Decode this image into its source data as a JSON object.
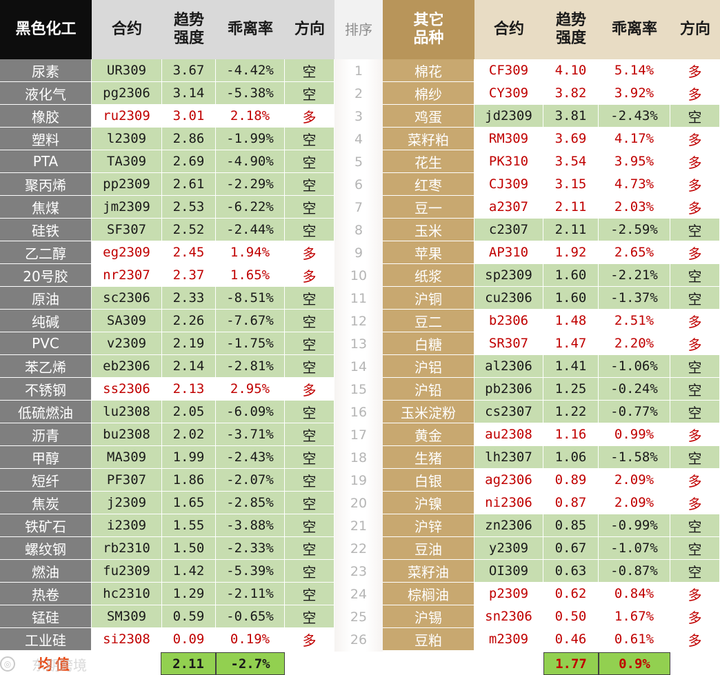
{
  "colors": {
    "header_black": "#0d0d0d",
    "header_gray": "#d9d9d9",
    "header_rank": "#f2f2f2",
    "header_gold": "#b8955a",
    "header_tan": "#e8dcc4",
    "name_left_bg": "#7f7f7f",
    "name_right_bg": "#c8a870",
    "short_bg": "#c7ddb0",
    "long_bg": "#ffffff",
    "short_text": "#1a1a1a",
    "long_text": "#c00000",
    "avg_bg": "#92d050",
    "avg_label": "#e8430b"
  },
  "left": {
    "title": "黑色化工",
    "col_contract": "合约",
    "col_strength": "趋势\n强度",
    "col_deviation": "乖离率",
    "col_direction": "方向",
    "rows": [
      {
        "name": "尿素",
        "contract": "UR309",
        "strength": "3.67",
        "deviation": "-4.42%",
        "direction": "空"
      },
      {
        "name": "液化气",
        "contract": "pg2306",
        "strength": "3.14",
        "deviation": "-5.38%",
        "direction": "空"
      },
      {
        "name": "橡胶",
        "contract": "ru2309",
        "strength": "3.01",
        "deviation": "2.18%",
        "direction": "多"
      },
      {
        "name": "塑料",
        "contract": "l2309",
        "strength": "2.86",
        "deviation": "-1.99%",
        "direction": "空"
      },
      {
        "name": "PTA",
        "contract": "TA309",
        "strength": "2.69",
        "deviation": "-4.90%",
        "direction": "空"
      },
      {
        "name": "聚丙烯",
        "contract": "pp2309",
        "strength": "2.61",
        "deviation": "-2.29%",
        "direction": "空"
      },
      {
        "name": "焦煤",
        "contract": "jm2309",
        "strength": "2.53",
        "deviation": "-6.22%",
        "direction": "空"
      },
      {
        "name": "硅铁",
        "contract": "SF307",
        "strength": "2.52",
        "deviation": "-2.44%",
        "direction": "空"
      },
      {
        "name": "乙二醇",
        "contract": "eg2309",
        "strength": "2.45",
        "deviation": "1.94%",
        "direction": "多"
      },
      {
        "name": "20号胶",
        "contract": "nr2307",
        "strength": "2.37",
        "deviation": "1.65%",
        "direction": "多"
      },
      {
        "name": "原油",
        "contract": "sc2306",
        "strength": "2.33",
        "deviation": "-8.51%",
        "direction": "空"
      },
      {
        "name": "纯碱",
        "contract": "SA309",
        "strength": "2.26",
        "deviation": "-7.67%",
        "direction": "空"
      },
      {
        "name": "PVC",
        "contract": "v2309",
        "strength": "2.19",
        "deviation": "-1.75%",
        "direction": "空"
      },
      {
        "name": "苯乙烯",
        "contract": "eb2306",
        "strength": "2.14",
        "deviation": "-2.81%",
        "direction": "空"
      },
      {
        "name": "不锈钢",
        "contract": "ss2306",
        "strength": "2.13",
        "deviation": "2.95%",
        "direction": "多"
      },
      {
        "name": "低硫燃油",
        "contract": "lu2308",
        "strength": "2.05",
        "deviation": "-6.09%",
        "direction": "空"
      },
      {
        "name": "沥青",
        "contract": "bu2308",
        "strength": "2.02",
        "deviation": "-3.71%",
        "direction": "空"
      },
      {
        "name": "甲醇",
        "contract": "MA309",
        "strength": "1.99",
        "deviation": "-2.43%",
        "direction": "空"
      },
      {
        "name": "短纤",
        "contract": "PF307",
        "strength": "1.86",
        "deviation": "-2.07%",
        "direction": "空"
      },
      {
        "name": "焦炭",
        "contract": "j2309",
        "strength": "1.65",
        "deviation": "-2.85%",
        "direction": "空"
      },
      {
        "name": "铁矿石",
        "contract": "i2309",
        "strength": "1.55",
        "deviation": "-3.88%",
        "direction": "空"
      },
      {
        "name": "螺纹钢",
        "contract": "rb2310",
        "strength": "1.50",
        "deviation": "-2.33%",
        "direction": "空"
      },
      {
        "name": "燃油",
        "contract": "fu2309",
        "strength": "1.42",
        "deviation": "-5.39%",
        "direction": "空"
      },
      {
        "name": "热卷",
        "contract": "hc2310",
        "strength": "1.29",
        "deviation": "-2.11%",
        "direction": "空"
      },
      {
        "name": "锰硅",
        "contract": "SM309",
        "strength": "0.59",
        "deviation": "-0.65%",
        "direction": "空"
      },
      {
        "name": "工业硅",
        "contract": "si2308",
        "strength": "0.09",
        "deviation": "0.19%",
        "direction": "多"
      }
    ],
    "avg_label": "均值",
    "avg_strength": "2.11",
    "avg_deviation": "-2.7%"
  },
  "rank": {
    "title": "排序",
    "values": [
      "1",
      "2",
      "3",
      "4",
      "5",
      "6",
      "7",
      "8",
      "9",
      "10",
      "11",
      "12",
      "13",
      "14",
      "15",
      "16",
      "17",
      "18",
      "19",
      "20",
      "21",
      "22",
      "23",
      "24",
      "25",
      "26"
    ]
  },
  "right": {
    "title": "其它\n品种",
    "col_contract": "合约",
    "col_strength": "趋势\n强度",
    "col_deviation": "乖离率",
    "col_direction": "方向",
    "rows": [
      {
        "name": "棉花",
        "contract": "CF309",
        "strength": "4.10",
        "deviation": "5.14%",
        "direction": "多"
      },
      {
        "name": "棉纱",
        "contract": "CY309",
        "strength": "3.82",
        "deviation": "3.92%",
        "direction": "多"
      },
      {
        "name": "鸡蛋",
        "contract": "jd2309",
        "strength": "3.81",
        "deviation": "-2.43%",
        "direction": "空"
      },
      {
        "name": "菜籽粕",
        "contract": "RM309",
        "strength": "3.69",
        "deviation": "4.17%",
        "direction": "多"
      },
      {
        "name": "花生",
        "contract": "PK310",
        "strength": "3.54",
        "deviation": "3.95%",
        "direction": "多"
      },
      {
        "name": "红枣",
        "contract": "CJ309",
        "strength": "3.15",
        "deviation": "4.73%",
        "direction": "多"
      },
      {
        "name": "豆一",
        "contract": "a2307",
        "strength": "2.11",
        "deviation": "2.03%",
        "direction": "多"
      },
      {
        "name": "玉米",
        "contract": "c2307",
        "strength": "2.11",
        "deviation": "-2.59%",
        "direction": "空"
      },
      {
        "name": "苹果",
        "contract": "AP310",
        "strength": "1.92",
        "deviation": "2.65%",
        "direction": "多"
      },
      {
        "name": "纸浆",
        "contract": "sp2309",
        "strength": "1.60",
        "deviation": "-2.21%",
        "direction": "空"
      },
      {
        "name": "沪铜",
        "contract": "cu2306",
        "strength": "1.60",
        "deviation": "-1.37%",
        "direction": "空"
      },
      {
        "name": "豆二",
        "contract": "b2306",
        "strength": "1.48",
        "deviation": "2.51%",
        "direction": "多"
      },
      {
        "name": "白糖",
        "contract": "SR307",
        "strength": "1.47",
        "deviation": "2.20%",
        "direction": "多"
      },
      {
        "name": "沪铝",
        "contract": "al2306",
        "strength": "1.41",
        "deviation": "-1.06%",
        "direction": "空"
      },
      {
        "name": "沪铅",
        "contract": "pb2306",
        "strength": "1.25",
        "deviation": "-0.24%",
        "direction": "空"
      },
      {
        "name": "玉米淀粉",
        "contract": "cs2307",
        "strength": "1.22",
        "deviation": "-0.77%",
        "direction": "空"
      },
      {
        "name": "黄金",
        "contract": "au2308",
        "strength": "1.16",
        "deviation": "0.99%",
        "direction": "多"
      },
      {
        "name": "生猪",
        "contract": "lh2307",
        "strength": "1.06",
        "deviation": "-1.58%",
        "direction": "空"
      },
      {
        "name": "白银",
        "contract": "ag2306",
        "strength": "0.89",
        "deviation": "2.09%",
        "direction": "多"
      },
      {
        "name": "沪镍",
        "contract": "ni2306",
        "strength": "0.87",
        "deviation": "2.09%",
        "direction": "多"
      },
      {
        "name": "沪锌",
        "contract": "zn2306",
        "strength": "0.85",
        "deviation": "-0.99%",
        "direction": "空"
      },
      {
        "name": "豆油",
        "contract": "y2309",
        "strength": "0.67",
        "deviation": "-1.07%",
        "direction": "空"
      },
      {
        "name": "菜籽油",
        "contract": "OI309",
        "strength": "0.63",
        "deviation": "-0.87%",
        "direction": "空"
      },
      {
        "name": "棕榈油",
        "contract": "p2309",
        "strength": "0.62",
        "deviation": "0.84%",
        "direction": "多"
      },
      {
        "name": "沪锡",
        "contract": "sn2306",
        "strength": "0.50",
        "deviation": "1.67%",
        "direction": "多"
      },
      {
        "name": "豆粕",
        "contract": "m2309",
        "strength": "0.46",
        "deviation": "0.61%",
        "direction": "多"
      }
    ],
    "avg_strength": "1.77",
    "avg_deviation": "0.9%"
  },
  "watermark": "东期跨境"
}
